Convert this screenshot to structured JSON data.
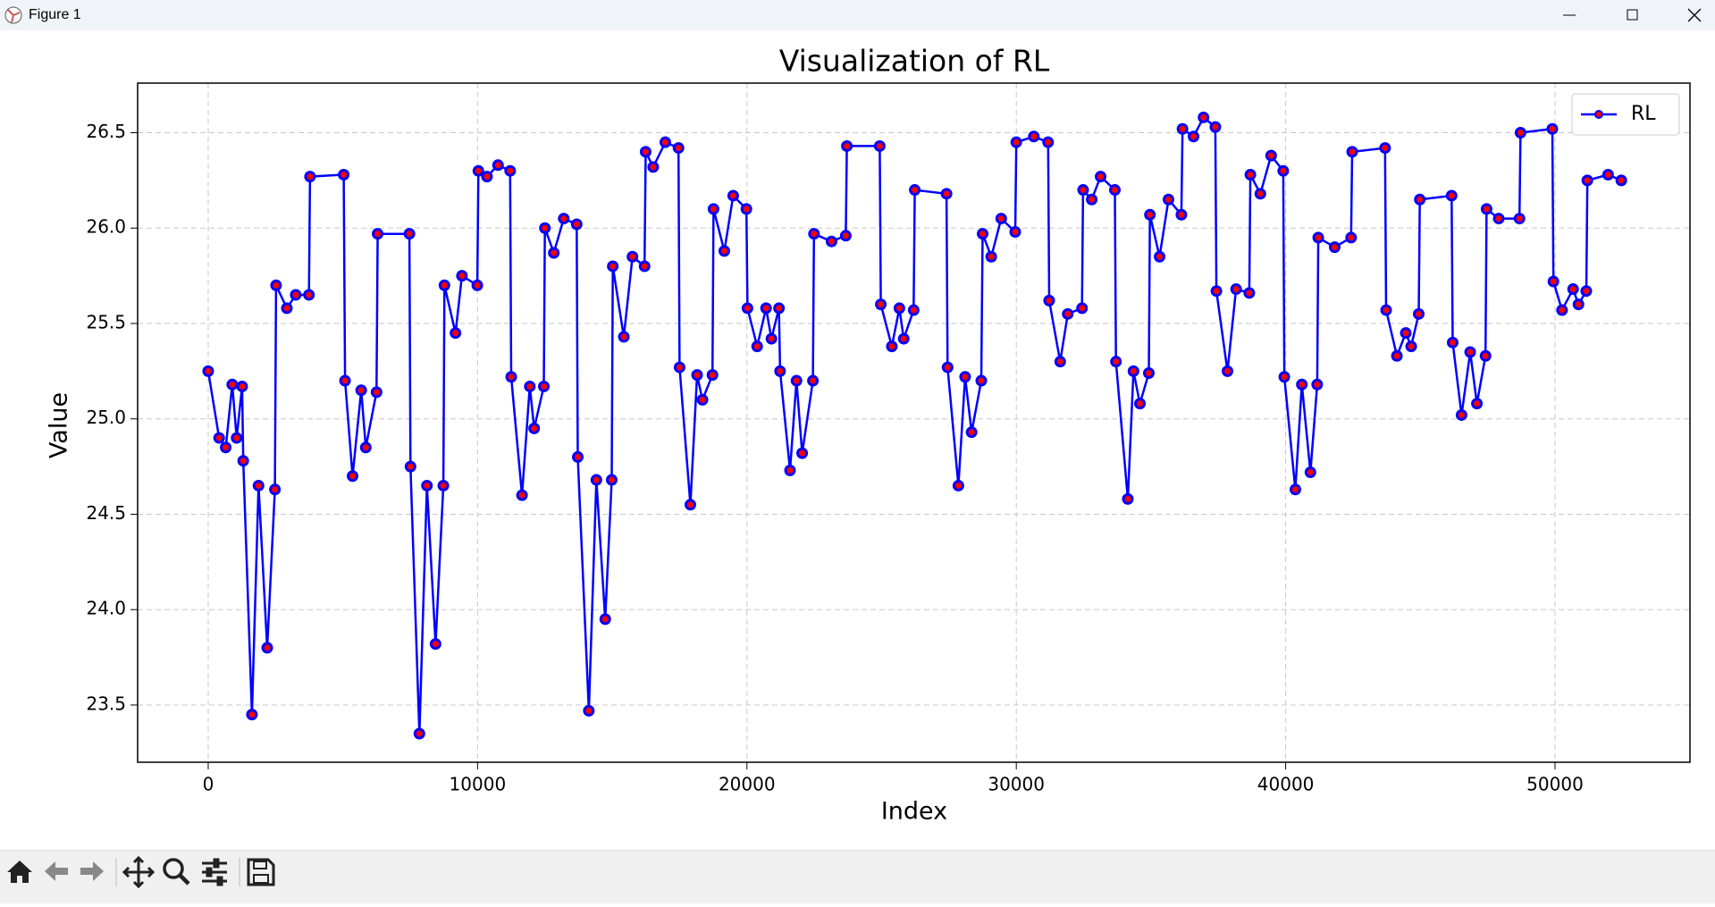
{
  "window": {
    "title": "Figure 1"
  },
  "chart_data": {
    "type": "line",
    "title": "Visualization of RL",
    "xlabel": "Index",
    "ylabel": "Value",
    "x": [
      0,
      406,
      650,
      893,
      1056,
      1259,
      1300,
      1624,
      1868,
      2192,
      2477,
      2520,
      2920,
      3250,
      3740,
      3780,
      5030,
      5080,
      5360,
      5680,
      5850,
      6250,
      6290,
      7470,
      7510,
      7840,
      8120,
      8440,
      8730,
      8770,
      9180,
      9420,
      9990,
      10030,
      10350,
      10760,
      11210,
      11250,
      11650,
      11940,
      12100,
      12460,
      12500,
      12830,
      13200,
      13680,
      13720,
      14130,
      14410,
      14740,
      14980,
      15020,
      15430,
      15750,
      16200,
      16240,
      16520,
      16970,
      17460,
      17500,
      17900,
      18150,
      18350,
      18720,
      18760,
      19160,
      19490,
      19980,
      20020,
      20380,
      20710,
      20910,
      21190,
      21230,
      21600,
      21840,
      22050,
      22450,
      22490,
      23140,
      23670,
      23710,
      24930,
      24970,
      25380,
      25660,
      25820,
      26190,
      26230,
      27410,
      27450,
      27850,
      28100,
      28340,
      28700,
      28750,
      29070,
      29440,
      29960,
      30000,
      30650,
      31180,
      31220,
      31630,
      31910,
      32440,
      32480,
      32800,
      33130,
      33660,
      33700,
      34140,
      34350,
      34590,
      34920,
      34960,
      35320,
      35650,
      36130,
      36170,
      36580,
      36950,
      37390,
      37430,
      37840,
      38160,
      38650,
      38690,
      39060,
      39460,
      39910,
      39950,
      40360,
      40600,
      40920,
      41170,
      41210,
      41820,
      42430,
      42470,
      43690,
      43730,
      44130,
      44460,
      44660,
      44940,
      44980,
      46160,
      46200,
      46530,
      46850,
      47100,
      47420,
      47460,
      47910,
      48680,
      48720,
      49900,
      49940,
      50260,
      50670,
      50870,
      51160,
      51200,
      51970,
      52460
    ],
    "series": [
      {
        "name": "RL",
        "color": "blue",
        "marker_color": "red",
        "values": [
          25.25,
          24.9,
          24.85,
          25.18,
          24.9,
          25.17,
          24.78,
          23.45,
          24.65,
          23.8,
          24.63,
          25.7,
          25.58,
          25.65,
          25.65,
          26.27,
          26.28,
          25.2,
          24.7,
          25.15,
          24.85,
          25.14,
          25.97,
          25.97,
          24.75,
          23.35,
          24.65,
          23.82,
          24.65,
          25.7,
          25.45,
          25.75,
          25.7,
          26.3,
          26.27,
          26.33,
          26.3,
          25.22,
          24.6,
          25.17,
          24.95,
          25.17,
          26.0,
          25.87,
          26.05,
          26.02,
          24.8,
          23.47,
          24.68,
          23.95,
          24.68,
          25.8,
          25.43,
          25.85,
          25.8,
          26.4,
          26.32,
          26.45,
          26.42,
          25.27,
          24.55,
          25.23,
          25.1,
          25.23,
          26.1,
          25.88,
          26.17,
          26.1,
          25.58,
          25.38,
          25.58,
          25.42,
          25.58,
          25.25,
          24.73,
          25.2,
          24.82,
          25.2,
          25.97,
          25.93,
          25.96,
          26.43,
          26.43,
          25.6,
          25.38,
          25.58,
          25.42,
          25.57,
          26.2,
          26.18,
          25.27,
          24.65,
          25.22,
          24.93,
          25.2,
          25.97,
          25.85,
          26.05,
          25.98,
          26.45,
          26.48,
          26.45,
          25.62,
          25.3,
          25.55,
          25.58,
          26.2,
          26.15,
          26.27,
          26.2,
          25.3,
          24.58,
          25.25,
          25.08,
          25.24,
          26.07,
          25.85,
          26.15,
          26.07,
          26.52,
          26.48,
          26.58,
          26.53,
          25.67,
          25.25,
          25.68,
          25.66,
          26.28,
          26.18,
          26.38,
          26.3,
          25.22,
          24.63,
          25.18,
          24.72,
          25.18,
          25.95,
          25.9,
          25.95,
          26.4,
          26.42,
          25.57,
          25.33,
          25.45,
          25.38,
          25.55,
          26.15,
          26.17,
          25.4,
          25.02,
          25.35,
          25.08,
          25.33,
          26.1,
          26.05,
          26.05,
          26.5,
          26.52,
          25.72,
          25.57,
          25.68,
          25.6,
          25.67,
          26.25,
          26.28,
          26.25
        ]
      }
    ],
    "xlim": [
      -2620,
      55010
    ],
    "ylim": [
      23.2,
      26.76
    ],
    "xticks": [
      0,
      10000,
      20000,
      30000,
      40000,
      50000
    ],
    "yticks": [
      23.5,
      {
        "value": 24,
        "label": "24.0"
      },
      24.5,
      {
        "value": 25,
        "label": "25.0"
      },
      25.5,
      {
        "value": 26,
        "label": "26.0"
      },
      26.5
    ],
    "grid": true,
    "legend": "upper right"
  }
}
